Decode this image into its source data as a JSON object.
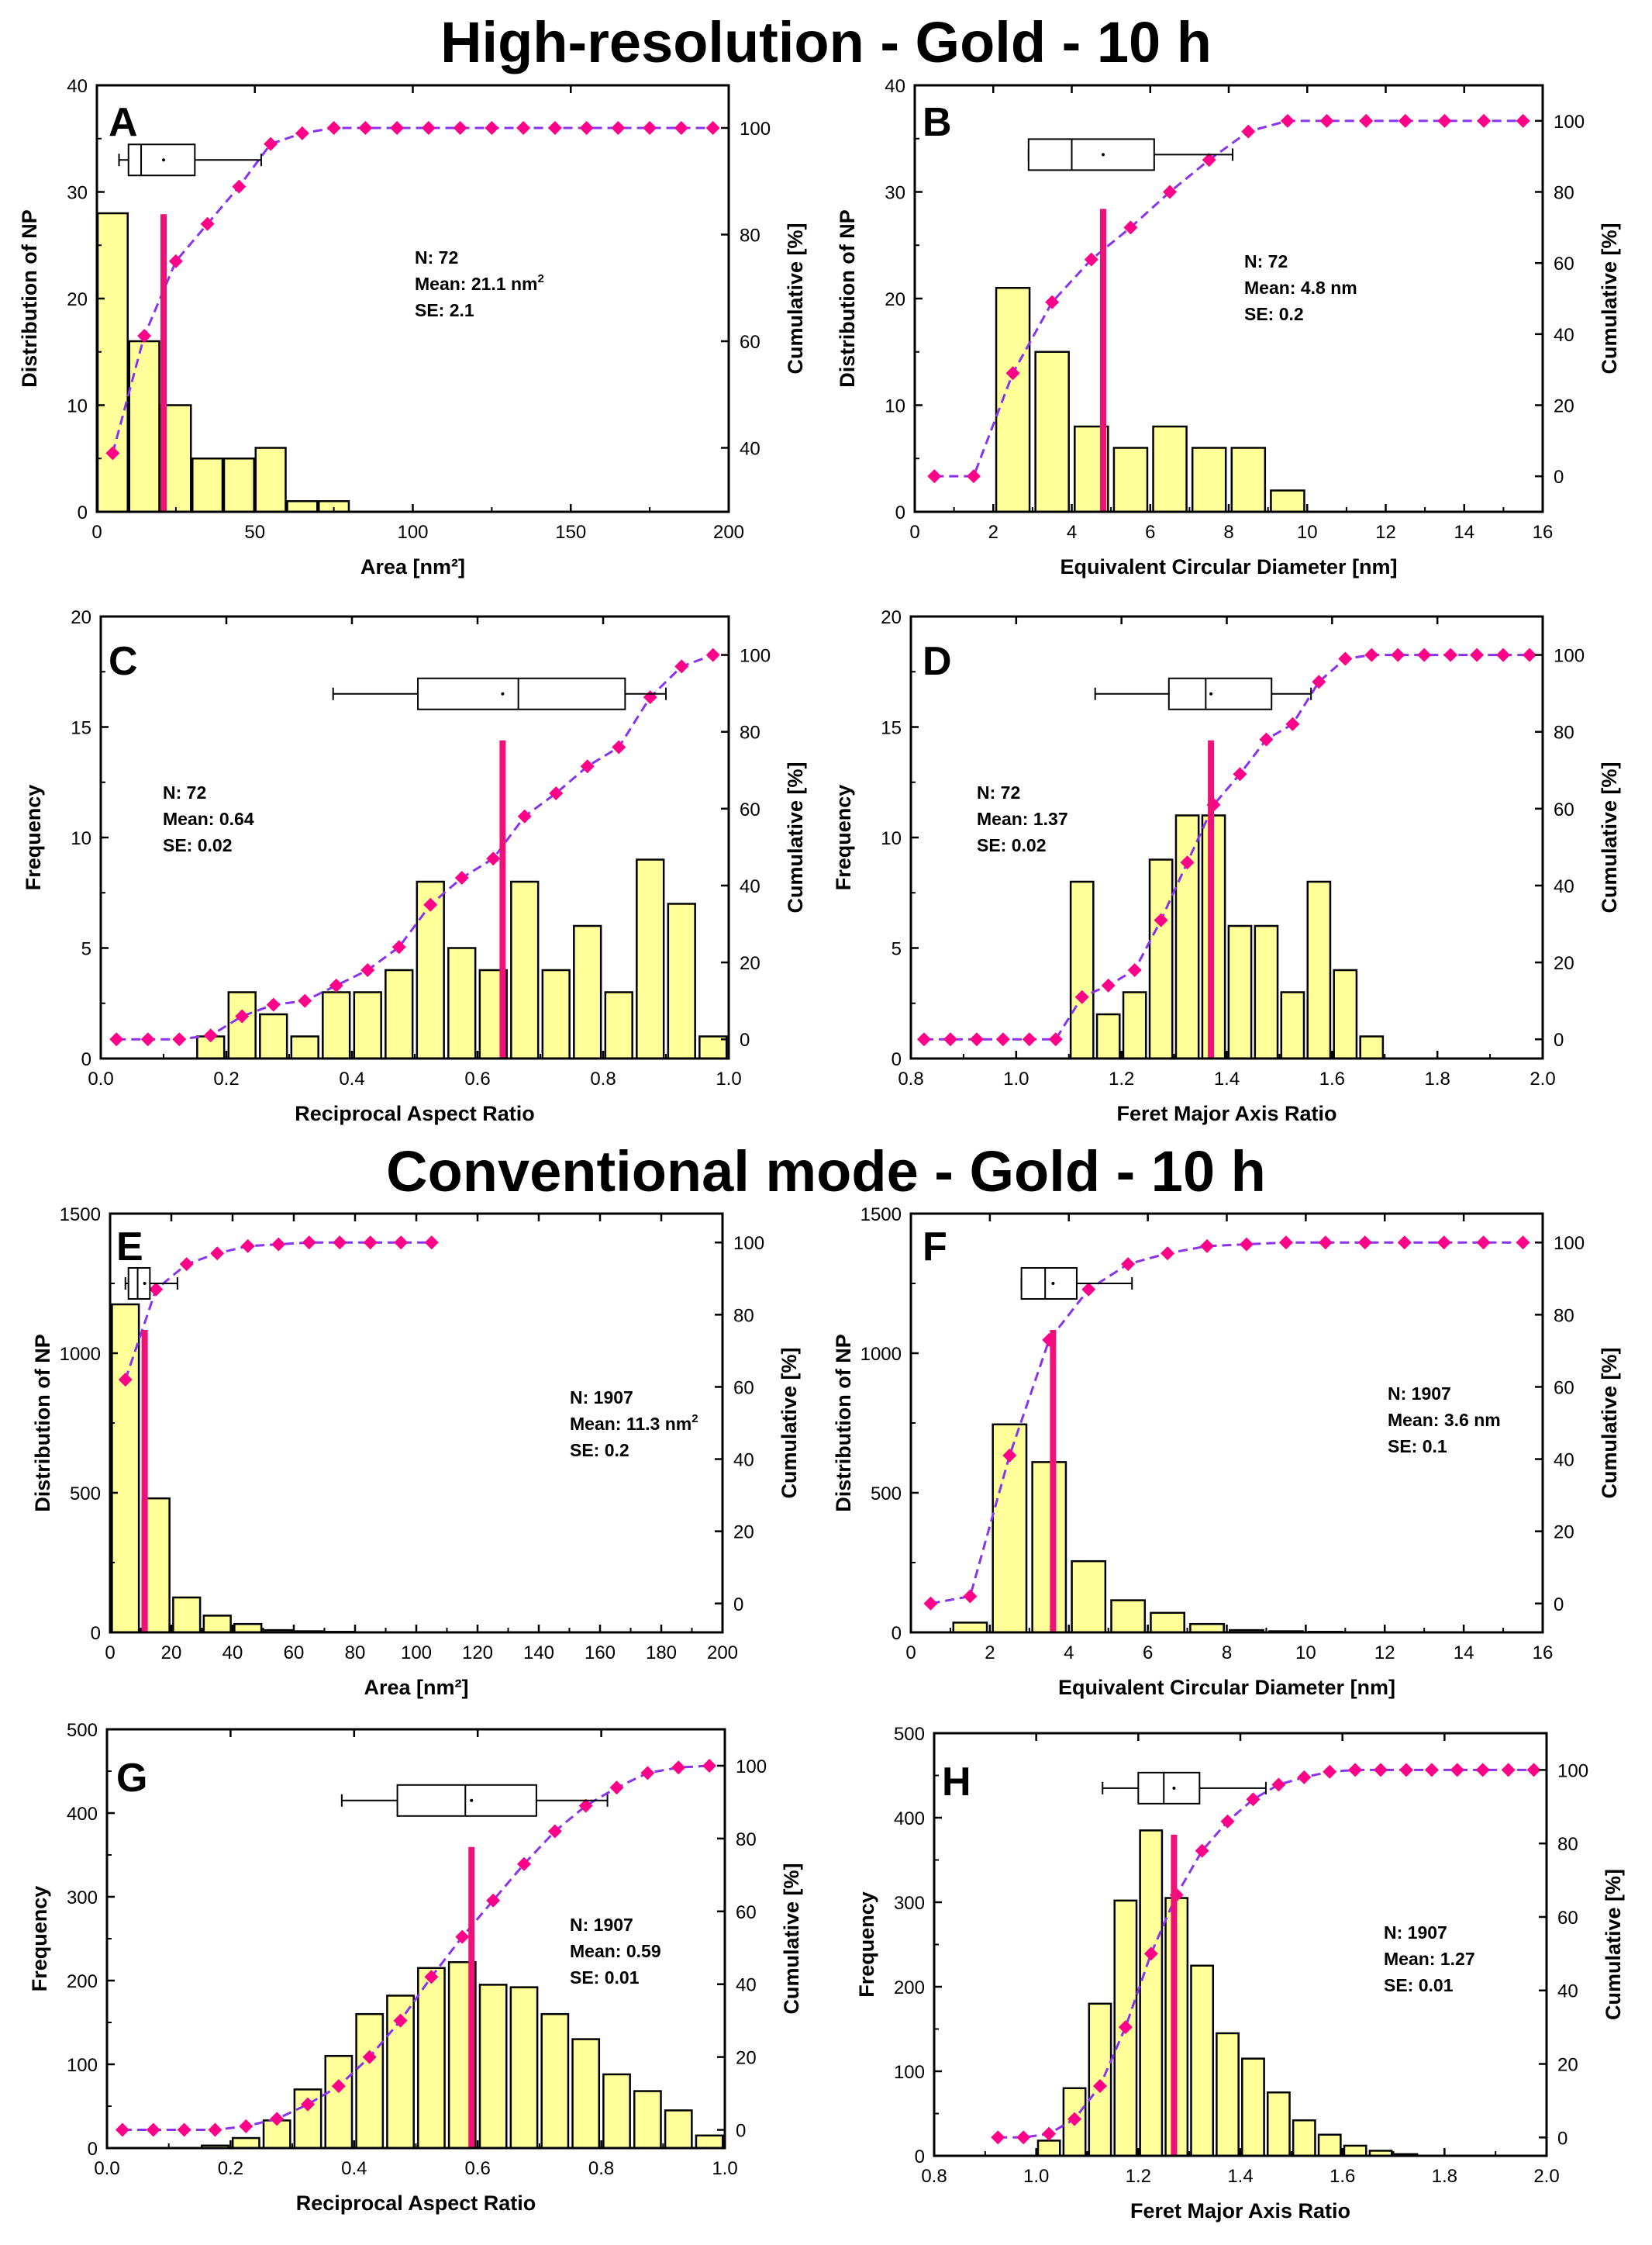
{
  "titles": {
    "high_resolution": "High-resolution - Gold - 10 h",
    "conventional": "Conventional mode - Gold - 10 h"
  },
  "colors": {
    "bar_fill": "#FFFF99",
    "bar_stroke": "#000000",
    "mean_line": "#EE1177",
    "cumulative_line": "#8833EE",
    "cumulative_marker": "#FF0088"
  },
  "chart_data": [
    {
      "type": "bar",
      "panel": "A",
      "title": "",
      "xlabel": "Area [nm²]",
      "ylabel": "Distribution of NP",
      "y2label": "Cumulative [%]",
      "xlim": [
        0,
        200
      ],
      "ylim": [
        0,
        40
      ],
      "y2lim": [
        28,
        108
      ],
      "x_ticks": [
        0,
        50,
        100,
        150,
        200
      ],
      "y_ticks": [
        0,
        10,
        20,
        30,
        40
      ],
      "y2_ticks": [
        40,
        60,
        80,
        100
      ],
      "bar_width": 9.5,
      "x": [
        5,
        15,
        25,
        35,
        45,
        55,
        65,
        75
      ],
      "values": [
        28,
        16,
        10,
        5,
        5,
        6,
        1,
        1
      ],
      "mean": 21.1,
      "box": {
        "whisker_low": 7,
        "q1": 10,
        "median": 14,
        "q3": 31,
        "whisker_high": 52,
        "mean": 21.1,
        "y": 33
      },
      "cumulative": {
        "x": [
          5,
          15,
          25,
          35,
          45,
          55,
          65,
          75,
          85,
          95,
          105,
          115,
          125,
          135,
          145,
          155,
          165,
          175,
          185,
          195
        ],
        "values": [
          39,
          61,
          75,
          82,
          89,
          97,
          99,
          100,
          100,
          100,
          100,
          100,
          100,
          100,
          100,
          100,
          100,
          100,
          100,
          100
        ]
      },
      "stats": {
        "n": "N: 72",
        "mean": "Mean: 21.1 nm",
        "mean_sup": "2",
        "se": "SE: 2.1"
      }
    },
    {
      "type": "bar",
      "panel": "B",
      "title": "",
      "xlabel": "Equivalent Circular Diameter [nm]",
      "ylabel": "Distribution of NP",
      "y2label": "Cumulative [%]",
      "xlim": [
        0,
        16
      ],
      "ylim": [
        0,
        40
      ],
      "y2lim": [
        -10,
        110
      ],
      "x_ticks": [
        0,
        2,
        4,
        6,
        8,
        10,
        12,
        14,
        16
      ],
      "y_ticks": [
        0,
        10,
        20,
        30,
        40
      ],
      "y2_ticks": [
        0,
        20,
        40,
        60,
        80,
        100
      ],
      "bar_width": 0.85,
      "x": [
        2.5,
        3.5,
        4.5,
        5.5,
        6.5,
        7.5,
        8.5,
        9.5
      ],
      "values": [
        21,
        15,
        8,
        6,
        8,
        6,
        6,
        2
      ],
      "mean": 4.8,
      "box": {
        "whisker_low": 2.9,
        "q1": 2.9,
        "median": 4.0,
        "q3": 6.1,
        "whisker_high": 8.1,
        "mean": 4.8,
        "y": 33.5
      },
      "cumulative": {
        "x": [
          0.5,
          1.5,
          2.5,
          3.5,
          4.5,
          5.5,
          6.5,
          7.5,
          8.5,
          9.5,
          10.5,
          11.5,
          12.5,
          13.5,
          14.5,
          15.5
        ],
        "values": [
          0,
          0,
          29,
          49,
          61,
          70,
          80,
          89,
          97,
          100,
          100,
          100,
          100,
          100,
          100,
          100
        ]
      },
      "stats": {
        "n": "N: 72",
        "mean": "Mean: 4.8 nm",
        "mean_sup": "",
        "se": "SE: 0.2"
      }
    },
    {
      "type": "bar",
      "panel": "C",
      "title": "",
      "xlabel": "Reciprocal Aspect Ratio",
      "ylabel": "Frequency",
      "y2label": "Cumulative [%]",
      "xlim": [
        0,
        1
      ],
      "ylim": [
        0,
        20
      ],
      "y2lim": [
        -5,
        110
      ],
      "x_ticks": [
        0.0,
        0.2,
        0.4,
        0.6,
        0.8,
        1.0
      ],
      "y_ticks": [
        0,
        5,
        10,
        15,
        20
      ],
      "y2_ticks": [
        0,
        20,
        40,
        60,
        80,
        100
      ],
      "x_decimals": 1,
      "bar_width": 0.043,
      "x": [
        0.175,
        0.225,
        0.275,
        0.325,
        0.375,
        0.425,
        0.475,
        0.525,
        0.575,
        0.625,
        0.675,
        0.725,
        0.775,
        0.825,
        0.875,
        0.925,
        0.975
      ],
      "values": [
        1,
        3,
        2,
        1,
        3,
        3,
        4,
        8,
        5,
        4,
        8,
        4,
        6,
        3,
        9,
        7,
        1
      ],
      "mean": 0.64,
      "box": {
        "whisker_low": 0.37,
        "q1": 0.505,
        "median": 0.665,
        "q3": 0.835,
        "whisker_high": 0.9,
        "mean": 0.64,
        "y": 16.5
      },
      "cumulative": {
        "x": [
          0.025,
          0.075,
          0.125,
          0.175,
          0.225,
          0.275,
          0.325,
          0.375,
          0.425,
          0.475,
          0.525,
          0.575,
          0.625,
          0.675,
          0.725,
          0.775,
          0.825,
          0.875,
          0.925,
          0.975
        ],
        "values": [
          0,
          0,
          0,
          1,
          6,
          9,
          10,
          14,
          18,
          24,
          35,
          42,
          47,
          58,
          64,
          71,
          76,
          89,
          97,
          100
        ]
      },
      "stats": {
        "n": "N: 72",
        "mean": "Mean: 0.64",
        "mean_sup": "",
        "se": "SE: 0.02"
      }
    },
    {
      "type": "bar",
      "panel": "D",
      "title": "",
      "xlabel": "Feret Major Axis Ratio",
      "ylabel": "Frequency",
      "y2label": "Cumulative [%]",
      "xlim": [
        0.8,
        2.0
      ],
      "ylim": [
        0,
        20
      ],
      "y2lim": [
        -5,
        110
      ],
      "x_ticks": [
        0.8,
        1.0,
        1.2,
        1.4,
        1.6,
        1.8,
        2.0
      ],
      "y_ticks": [
        0,
        5,
        10,
        15,
        20
      ],
      "y2_ticks": [
        0,
        20,
        40,
        60,
        80,
        100
      ],
      "x_decimals": 1,
      "bar_width": 0.043,
      "x": [
        1.125,
        1.175,
        1.225,
        1.275,
        1.325,
        1.375,
        1.425,
        1.475,
        1.525,
        1.575,
        1.625,
        1.675
      ],
      "values": [
        8,
        2,
        3,
        9,
        11,
        11,
        6,
        6,
        3,
        8,
        4,
        1
      ],
      "mean": 1.37,
      "box": {
        "whisker_low": 1.15,
        "q1": 1.29,
        "median": 1.36,
        "q3": 1.485,
        "whisker_high": 1.56,
        "mean": 1.37,
        "y": 16.5
      },
      "cumulative": {
        "x": [
          0.825,
          0.875,
          0.925,
          0.975,
          1.025,
          1.075,
          1.125,
          1.175,
          1.225,
          1.275,
          1.325,
          1.375,
          1.425,
          1.475,
          1.525,
          1.575,
          1.625,
          1.675,
          1.725,
          1.775,
          1.825,
          1.875,
          1.925,
          1.975
        ],
        "values": [
          0,
          0,
          0,
          0,
          0,
          0,
          11,
          14,
          18,
          31,
          46,
          61,
          69,
          78,
          82,
          93,
          99,
          100,
          100,
          100,
          100,
          100,
          100,
          100
        ]
      },
      "stats": {
        "n": "N: 72",
        "mean": "Mean: 1.37",
        "mean_sup": "",
        "se": "SE: 0.02"
      }
    },
    {
      "type": "bar",
      "panel": "E",
      "title": "",
      "xlabel": "Area [nm²]",
      "ylabel": "Distribution of NP",
      "y2label": "Cumulative [%]",
      "xlim": [
        0,
        200
      ],
      "ylim": [
        0,
        1500
      ],
      "y2lim": [
        -8,
        108
      ],
      "x_ticks": [
        0,
        20,
        40,
        60,
        80,
        100,
        120,
        140,
        160,
        180,
        200
      ],
      "y_ticks": [
        0,
        500,
        1000,
        1500
      ],
      "y2_ticks": [
        0,
        20,
        40,
        60,
        80,
        100
      ],
      "bar_width": 8.8,
      "x": [
        5,
        15,
        25,
        35,
        45,
        55,
        65,
        75
      ],
      "values": [
        1175,
        480,
        125,
        60,
        30,
        8,
        4,
        2
      ],
      "mean": 11.3,
      "box": {
        "whisker_low": 5,
        "q1": 6,
        "median": 9,
        "q3": 13,
        "whisker_high": 22,
        "mean": 11.3,
        "y": 1250
      },
      "cumulative": {
        "x": [
          5,
          15,
          25,
          35,
          45,
          55,
          65,
          75,
          85,
          95,
          105
        ],
        "values": [
          62,
          87,
          94,
          97,
          99,
          99.5,
          100,
          100,
          100,
          100,
          100
        ]
      },
      "stats": {
        "n": "N: 1907",
        "mean": "Mean: 11.3 nm",
        "mean_sup": "2",
        "se": "SE: 0.2"
      }
    },
    {
      "type": "bar",
      "panel": "F",
      "title": "",
      "xlabel": "Equivalent Circular Diameter [nm]",
      "ylabel": "Distribution of NP",
      "y2label": "Cumulative [%]",
      "xlim": [
        0,
        16
      ],
      "ylim": [
        0,
        1500
      ],
      "y2lim": [
        -8,
        108
      ],
      "x_ticks": [
        0,
        2,
        4,
        6,
        8,
        10,
        12,
        14,
        16
      ],
      "y_ticks": [
        0,
        500,
        1000,
        1500
      ],
      "y2_ticks": [
        0,
        20,
        40,
        60,
        80,
        100
      ],
      "bar_width": 0.85,
      "x": [
        1.5,
        2.5,
        3.5,
        4.5,
        5.5,
        6.5,
        7.5,
        8.5,
        9.5,
        10.5
      ],
      "values": [
        35,
        745,
        610,
        255,
        115,
        70,
        30,
        8,
        4,
        2
      ],
      "mean": 3.6,
      "box": {
        "whisker_low": 2.8,
        "q1": 2.8,
        "median": 3.4,
        "q3": 4.2,
        "whisker_high": 5.6,
        "mean": 3.6,
        "y": 1250
      },
      "cumulative": {
        "x": [
          0.5,
          1.5,
          2.5,
          3.5,
          4.5,
          5.5,
          6.5,
          7.5,
          8.5,
          9.5,
          10.5,
          11.5,
          12.5,
          13.5,
          14.5,
          15.5
        ],
        "values": [
          0,
          2,
          41,
          73,
          87,
          94,
          97,
          99,
          99.5,
          100,
          100,
          100,
          100,
          100,
          100,
          100
        ]
      },
      "stats": {
        "n": "N: 1907",
        "mean": "Mean: 3.6 nm",
        "mean_sup": "",
        "se": "SE: 0.1"
      }
    },
    {
      "type": "bar",
      "panel": "G",
      "title": "",
      "xlabel": "Reciprocal Aspect Ratio",
      "ylabel": "Frequency",
      "y2label": "Cumulative [%]",
      "xlim": [
        0,
        1
      ],
      "ylim": [
        0,
        500
      ],
      "y2lim": [
        -5,
        110
      ],
      "x_ticks": [
        0.0,
        0.2,
        0.4,
        0.6,
        0.8,
        1.0
      ],
      "y_ticks": [
        0,
        100,
        200,
        300,
        400,
        500
      ],
      "y2_ticks": [
        0,
        20,
        40,
        60,
        80,
        100
      ],
      "x_decimals": 1,
      "bar_width": 0.043,
      "x": [
        0.175,
        0.225,
        0.275,
        0.325,
        0.375,
        0.425,
        0.475,
        0.525,
        0.575,
        0.625,
        0.675,
        0.725,
        0.775,
        0.825,
        0.875,
        0.925,
        0.975
      ],
      "values": [
        3,
        12,
        33,
        70,
        110,
        160,
        182,
        215,
        222,
        195,
        192,
        160,
        130,
        88,
        68,
        45,
        15
      ],
      "mean": 0.59,
      "box": {
        "whisker_low": 0.38,
        "q1": 0.47,
        "median": 0.58,
        "q3": 0.695,
        "whisker_high": 0.81,
        "mean": 0.59,
        "y": 415
      },
      "cumulative": {
        "x": [
          0.025,
          0.075,
          0.125,
          0.175,
          0.225,
          0.275,
          0.325,
          0.375,
          0.425,
          0.475,
          0.525,
          0.575,
          0.625,
          0.675,
          0.725,
          0.775,
          0.825,
          0.875,
          0.925,
          0.975
        ],
        "values": [
          0,
          0,
          0,
          0,
          1,
          3,
          7,
          12,
          20,
          30,
          42,
          53,
          63,
          73,
          82,
          89,
          94,
          98,
          99.5,
          100
        ]
      },
      "stats": {
        "n": "N: 1907",
        "mean": "Mean: 0.59",
        "mean_sup": "",
        "se": "SE: 0.01"
      }
    },
    {
      "type": "bar",
      "panel": "H",
      "title": "",
      "xlabel": "Feret Major Axis Ratio",
      "ylabel": "Frequency",
      "y2label": "Cumulative [%]",
      "xlim": [
        0.8,
        2.0
      ],
      "ylim": [
        0,
        500
      ],
      "y2lim": [
        -5,
        110
      ],
      "x_ticks": [
        0.8,
        1.0,
        1.2,
        1.4,
        1.6,
        1.8,
        2.0
      ],
      "y_ticks": [
        0,
        100,
        200,
        300,
        400,
        500
      ],
      "y2_ticks": [
        0,
        20,
        40,
        60,
        80,
        100
      ],
      "x_decimals": 1,
      "bar_width": 0.043,
      "x": [
        1.025,
        1.075,
        1.125,
        1.175,
        1.225,
        1.275,
        1.325,
        1.375,
        1.425,
        1.475,
        1.525,
        1.575,
        1.625,
        1.675,
        1.725
      ],
      "values": [
        18,
        80,
        180,
        302,
        385,
        305,
        225,
        145,
        115,
        75,
        42,
        25,
        12,
        6,
        2
      ],
      "mean": 1.27,
      "box": {
        "whisker_low": 1.13,
        "q1": 1.2,
        "median": 1.25,
        "q3": 1.32,
        "whisker_high": 1.45,
        "mean": 1.27,
        "y": 435
      },
      "cumulative": {
        "x": [
          0.925,
          0.975,
          1.025,
          1.075,
          1.125,
          1.175,
          1.225,
          1.275,
          1.325,
          1.375,
          1.425,
          1.475,
          1.525,
          1.575,
          1.625,
          1.675,
          1.725,
          1.775,
          1.825,
          1.875,
          1.925,
          1.975
        ],
        "values": [
          0,
          0,
          1,
          5,
          14,
          30,
          50,
          66,
          78,
          86,
          92,
          96,
          98,
          99.5,
          100,
          100,
          100,
          100,
          100,
          100,
          100,
          100
        ]
      },
      "stats": {
        "n": "N: 1907",
        "mean": "Mean: 1.27",
        "mean_sup": "",
        "se": "SE: 0.01"
      }
    }
  ]
}
